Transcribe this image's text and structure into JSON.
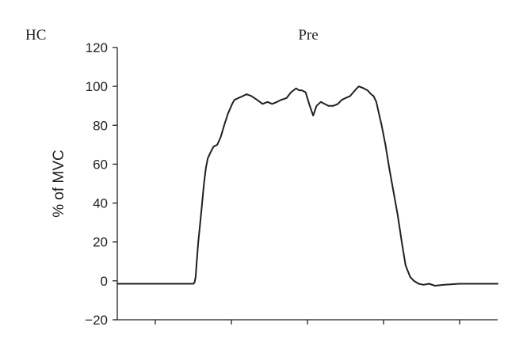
{
  "chart_data": {
    "type": "line",
    "panel_label": "HC",
    "title": "Pre",
    "xlabel": "",
    "ylabel": "% of MVC",
    "xlim": [
      0,
      100
    ],
    "ylim": [
      -20,
      120
    ],
    "yticks": [
      -20,
      0,
      20,
      40,
      60,
      80,
      100,
      120
    ],
    "xticks": [
      10,
      30,
      50,
      70,
      90
    ],
    "xtick_labels_shown": false,
    "grid": false,
    "legend": "none",
    "line_color": "#231f20",
    "series": [
      {
        "x": [
          0,
          10,
          20,
          20.3,
          20.6,
          20.9,
          21.3,
          21.7,
          22.2,
          22.8,
          23.3,
          23.8,
          24.5,
          25.3,
          26.3,
          27.2,
          28.1,
          29.1,
          30.2,
          30.8,
          31.8,
          33.0,
          34.0,
          35.3,
          36.8,
          38.2,
          39.5,
          40.7,
          42.0,
          43.0,
          44.5,
          45.7,
          47.0,
          47.8,
          48.5,
          49.5,
          50.6,
          51.5,
          52.4,
          53.5,
          54.5,
          55.5,
          56.8,
          58.0,
          59.0,
          60.0,
          61.2,
          62.5,
          63.5,
          64.8,
          65.8,
          66.7,
          67.4,
          68.1,
          68.8,
          69.5,
          70.5,
          71.5,
          72.6,
          73.7,
          74.8,
          75.8,
          77.0,
          78.0,
          79.2,
          80.5,
          82.0,
          83.5,
          86.0,
          90.0,
          95.0,
          100
        ],
        "y": [
          -1.5,
          -1.5,
          -1.5,
          -1,
          2,
          10,
          20,
          28,
          38,
          50,
          58,
          63,
          66,
          69,
          70,
          74,
          80,
          86,
          91,
          93,
          94,
          95,
          96,
          95,
          93,
          91,
          92,
          91,
          92,
          93,
          94,
          97,
          99,
          98,
          98,
          97,
          90,
          85,
          90,
          92,
          91,
          90,
          90,
          91,
          93,
          94,
          95,
          98,
          100,
          99,
          98,
          96,
          95,
          92,
          86,
          80,
          70,
          58,
          46,
          34,
          20,
          8,
          2,
          0,
          -1.5,
          -2,
          -1.5,
          -2.5,
          -2,
          -1.5,
          -1.5,
          -1.5
        ]
      }
    ]
  }
}
